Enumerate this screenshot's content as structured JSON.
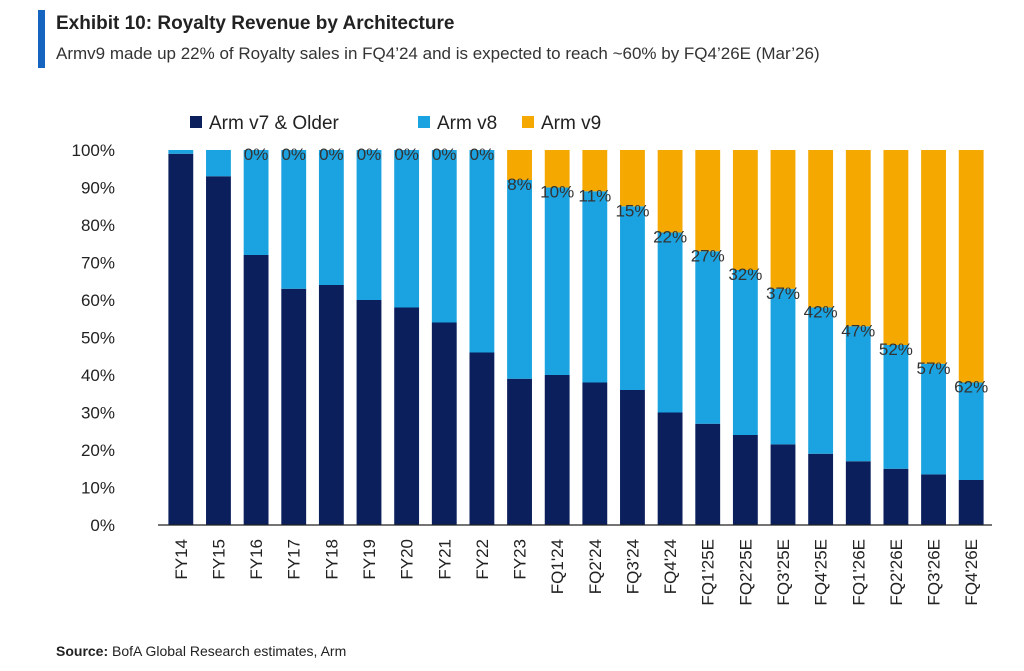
{
  "header": {
    "title": "Exhibit 10: Royalty Revenue by Architecture",
    "subtitle": "Armv9 made up 22% of Royalty sales in FQ4’24 and is expected to reach ~60% by FQ4’26E (Mar’26)"
  },
  "footer": {
    "source_label": "Source:",
    "source_text": " BofA Global Research estimates, Arm"
  },
  "colors": {
    "accent": "#1565c0",
    "arm_v7": "#0a1f5c",
    "arm_v8": "#1aa3e0",
    "arm_v9": "#f5a800"
  },
  "chart_data": {
    "type": "bar",
    "stacked": true,
    "categories": [
      "FY14",
      "FY15",
      "FY16",
      "FY17",
      "FY18",
      "FY19",
      "FY20",
      "FY21",
      "FY22",
      "FY23",
      "FQ1'24",
      "FQ2'24",
      "FQ3'24",
      "FQ4'24",
      "FQ1'25E",
      "FQ2'25E",
      "FQ3'25E",
      "FQ4'25E",
      "FQ1'26E",
      "FQ2'26E",
      "FQ3'26E",
      "FQ4'26E"
    ],
    "series": [
      {
        "name": "Arm v7 & Older",
        "color": "#0a1f5c",
        "values": [
          99,
          93,
          72,
          63,
          64,
          60,
          58,
          54,
          46,
          39,
          40,
          38,
          36,
          30,
          27,
          24,
          21.5,
          19,
          17,
          15,
          13.5,
          12
        ]
      },
      {
        "name": "Arm v8",
        "color": "#1aa3e0",
        "values": [
          1,
          7,
          28,
          37,
          36,
          40,
          42,
          46,
          54,
          53,
          50,
          51,
          49,
          48,
          46,
          44,
          41.5,
          39,
          36,
          33,
          29.5,
          26
        ]
      },
      {
        "name": "Arm v9",
        "color": "#f5a800",
        "values": [
          0,
          0,
          0,
          0,
          0,
          0,
          0,
          0,
          0,
          8,
          10,
          11,
          15,
          22,
          27,
          32,
          37,
          42,
          47,
          52,
          57,
          62
        ]
      }
    ],
    "data_labels": [
      "",
      "",
      "0%",
      "0%",
      "0%",
      "0%",
      "0%",
      "0%",
      "0%",
      "8%",
      "10%",
      "11%",
      "15%",
      "22%",
      "27%",
      "32%",
      "37%",
      "42%",
      "47%",
      "52%",
      "57%",
      "62%"
    ],
    "y_ticks": [
      "0%",
      "10%",
      "20%",
      "30%",
      "40%",
      "50%",
      "60%",
      "70%",
      "80%",
      "90%",
      "100%"
    ],
    "ylim": [
      0,
      100
    ],
    "legend_position": "top",
    "grid": false
  }
}
